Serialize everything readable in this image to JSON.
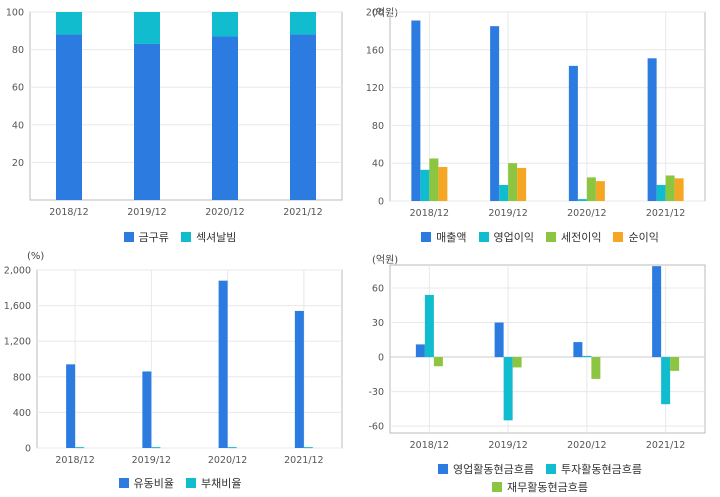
{
  "colors": {
    "blue": "#2b7be0",
    "teal": "#12bccf",
    "green": "#8cc540",
    "orange": "#f5a623",
    "grid": "#e8e8e8",
    "axis": "#bbbbbb"
  },
  "chart_data": [
    {
      "id": "top-left",
      "type": "bar",
      "stacked": true,
      "unit_label": "",
      "categories": [
        "2018/12",
        "2019/12",
        "2020/12",
        "2021/12"
      ],
      "series": [
        {
          "name": "금구류",
          "color": "#2b7be0",
          "values": [
            88,
            83,
            87,
            88
          ]
        },
        {
          "name": "섹셔날빔",
          "color": "#12bccf",
          "values": [
            12,
            17,
            13,
            12
          ]
        }
      ],
      "ylim": [
        0,
        100
      ],
      "yticks": [
        20,
        40,
        60,
        80,
        100
      ],
      "ytick_labels": [
        "20",
        "40",
        "60",
        "80",
        "100"
      ],
      "grid": true,
      "legend": "bottom"
    },
    {
      "id": "top-right",
      "type": "bar",
      "unit_label": "(억원)",
      "categories": [
        "2018/12",
        "2019/12",
        "2020/12",
        "2021/12"
      ],
      "series": [
        {
          "name": "매출액",
          "color": "#2b7be0",
          "values": [
            191,
            185,
            143,
            151
          ]
        },
        {
          "name": "영업이익",
          "color": "#12bccf",
          "values": [
            33,
            17,
            2,
            17
          ]
        },
        {
          "name": "세전이익",
          "color": "#8cc540",
          "values": [
            45,
            40,
            25,
            27
          ]
        },
        {
          "name": "순이익",
          "color": "#f5a623",
          "values": [
            36,
            35,
            21,
            24
          ]
        }
      ],
      "ylim": [
        0,
        200
      ],
      "yticks": [
        0,
        40,
        80,
        120,
        160,
        200
      ],
      "ytick_labels": [
        "0",
        "40",
        "80",
        "120",
        "160",
        "200"
      ],
      "grid": true,
      "legend": "bottom"
    },
    {
      "id": "bottom-left",
      "type": "bar",
      "unit_label": "(%)",
      "categories": [
        "2018/12",
        "2019/12",
        "2020/12",
        "2021/12"
      ],
      "series": [
        {
          "name": "유동비율",
          "color": "#2b7be0",
          "values": [
            940,
            860,
            1880,
            1540
          ]
        },
        {
          "name": "부채비율",
          "color": "#12bccf",
          "values": [
            10,
            10,
            10,
            10
          ]
        }
      ],
      "ylim": [
        0,
        2000
      ],
      "yticks": [
        0,
        400,
        800,
        1200,
        1600,
        2000
      ],
      "ytick_labels": [
        "0",
        "400",
        "800",
        "1,200",
        "1,600",
        "2,000"
      ],
      "grid": true,
      "legend": "bottom"
    },
    {
      "id": "bottom-right",
      "type": "bar",
      "unit_label": "(억원)",
      "categories": [
        "2018/12",
        "2019/12",
        "2020/12",
        "2021/12"
      ],
      "series": [
        {
          "name": "영업활동현금흐름",
          "color": "#2b7be0",
          "values": [
            11,
            30,
            13,
            79
          ]
        },
        {
          "name": "투자활동현금흐름",
          "color": "#12bccf",
          "values": [
            54,
            -55,
            1,
            -41
          ]
        },
        {
          "name": "재무활동현금흐름",
          "color": "#8cc540",
          "values": [
            -8,
            -9,
            -19,
            -12
          ]
        }
      ],
      "ylim": [
        -66,
        80
      ],
      "yticks": [
        -60,
        -30,
        0,
        30,
        60
      ],
      "ytick_labels": [
        "-60",
        "-30",
        "0",
        "30",
        "60"
      ],
      "grid": true,
      "legend": "bottom"
    }
  ]
}
